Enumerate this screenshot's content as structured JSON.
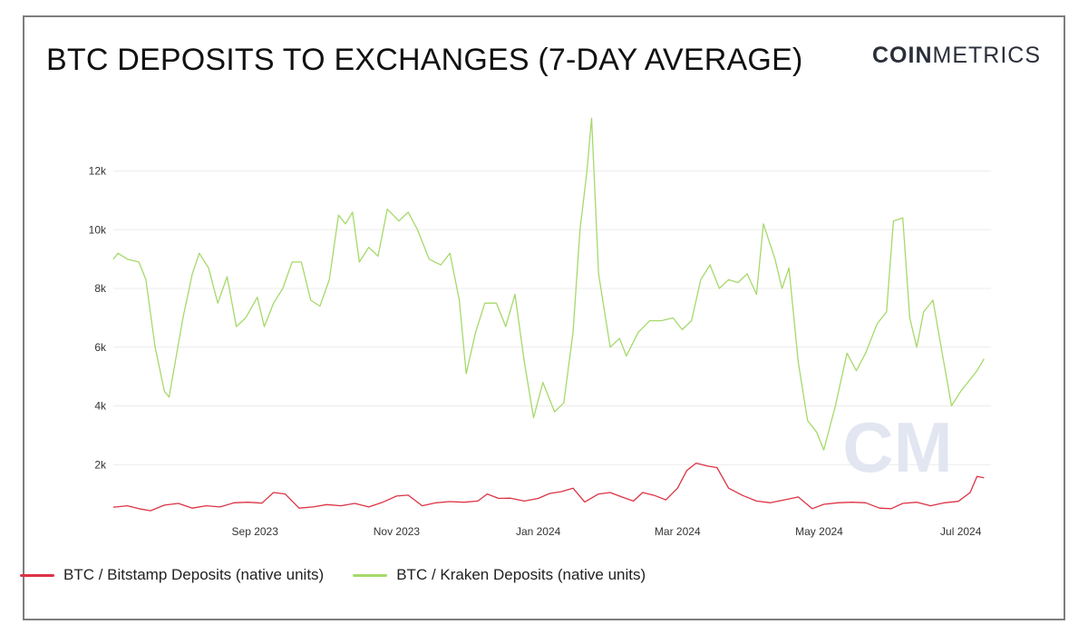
{
  "header": {
    "title": "BTC DEPOSITS TO EXCHANGES (7-DAY AVERAGE)",
    "logo_bold": "COIN",
    "logo_light": "METRICS"
  },
  "watermark": {
    "text": "CM",
    "color": "#e2e6f1"
  },
  "chart_data": {
    "type": "line",
    "title": "BTC DEPOSITS TO EXCHANGES (7-DAY AVERAGE)",
    "xlabel": "",
    "ylabel": "",
    "x_range": [
      "2023-07-02",
      "2024-07-14"
    ],
    "x_ticks": [
      {
        "date": "2023-09-01",
        "label": "Sep 2023"
      },
      {
        "date": "2023-11-01",
        "label": "Nov 2023"
      },
      {
        "date": "2024-01-01",
        "label": "Jan 2024"
      },
      {
        "date": "2024-03-01",
        "label": "Mar 2024"
      },
      {
        "date": "2024-05-01",
        "label": "May 2024"
      },
      {
        "date": "2024-07-01",
        "label": "Jul 2024"
      }
    ],
    "ylim": [
      0,
      13500
    ],
    "y_ticks": [
      {
        "value": 2000,
        "label": "2k"
      },
      {
        "value": 4000,
        "label": "4k"
      },
      {
        "value": 6000,
        "label": "6k"
      },
      {
        "value": 8000,
        "label": "8k"
      },
      {
        "value": 10000,
        "label": "10k"
      },
      {
        "value": 12000,
        "label": "12k"
      }
    ],
    "grid": true,
    "legend_position": "bottom-left",
    "series": [
      {
        "name": "BTC / Bitstamp Deposits (native units)",
        "color": "#dd3344",
        "points": [
          [
            "2023-07-02",
            550
          ],
          [
            "2023-07-08",
            600
          ],
          [
            "2023-07-13",
            500
          ],
          [
            "2023-07-18",
            430
          ],
          [
            "2023-07-24",
            620
          ],
          [
            "2023-07-30",
            680
          ],
          [
            "2023-08-05",
            520
          ],
          [
            "2023-08-11",
            600
          ],
          [
            "2023-08-17",
            560
          ],
          [
            "2023-08-23",
            700
          ],
          [
            "2023-08-29",
            720
          ],
          [
            "2023-09-04",
            690
          ],
          [
            "2023-09-09",
            1050
          ],
          [
            "2023-09-14",
            1000
          ],
          [
            "2023-09-20",
            520
          ],
          [
            "2023-09-26",
            560
          ],
          [
            "2023-10-02",
            640
          ],
          [
            "2023-10-08",
            600
          ],
          [
            "2023-10-14",
            680
          ],
          [
            "2023-10-20",
            560
          ],
          [
            "2023-10-26",
            720
          ],
          [
            "2023-11-01",
            930
          ],
          [
            "2023-11-06",
            960
          ],
          [
            "2023-11-12",
            600
          ],
          [
            "2023-11-18",
            700
          ],
          [
            "2023-11-24",
            740
          ],
          [
            "2023-11-30",
            720
          ],
          [
            "2023-12-06",
            760
          ],
          [
            "2023-12-10",
            1000
          ],
          [
            "2023-12-15",
            850
          ],
          [
            "2023-12-20",
            860
          ],
          [
            "2023-12-26",
            760
          ],
          [
            "2024-01-01",
            850
          ],
          [
            "2024-01-06",
            1020
          ],
          [
            "2024-01-11",
            1080
          ],
          [
            "2024-01-16",
            1200
          ],
          [
            "2024-01-21",
            730
          ],
          [
            "2024-01-27",
            1000
          ],
          [
            "2024-02-01",
            1050
          ],
          [
            "2024-02-06",
            900
          ],
          [
            "2024-02-11",
            760
          ],
          [
            "2024-02-15",
            1050
          ],
          [
            "2024-02-20",
            950
          ],
          [
            "2024-02-25",
            800
          ],
          [
            "2024-03-01",
            1200
          ],
          [
            "2024-03-05",
            1800
          ],
          [
            "2024-03-09",
            2050
          ],
          [
            "2024-03-14",
            1950
          ],
          [
            "2024-03-18",
            1900
          ],
          [
            "2024-03-23",
            1200
          ],
          [
            "2024-03-29",
            950
          ],
          [
            "2024-04-04",
            760
          ],
          [
            "2024-04-10",
            700
          ],
          [
            "2024-04-16",
            800
          ],
          [
            "2024-04-22",
            900
          ],
          [
            "2024-04-28",
            500
          ],
          [
            "2024-05-03",
            650
          ],
          [
            "2024-05-09",
            700
          ],
          [
            "2024-05-15",
            720
          ],
          [
            "2024-05-21",
            700
          ],
          [
            "2024-05-27",
            520
          ],
          [
            "2024-06-01",
            500
          ],
          [
            "2024-06-06",
            680
          ],
          [
            "2024-06-12",
            720
          ],
          [
            "2024-06-18",
            600
          ],
          [
            "2024-06-24",
            700
          ],
          [
            "2024-06-30",
            750
          ],
          [
            "2024-07-05",
            1050
          ],
          [
            "2024-07-08",
            1600
          ],
          [
            "2024-07-11",
            1550
          ]
        ]
      },
      {
        "name": "BTC / Kraken Deposits (native units)",
        "color": "#a6d96a",
        "points": [
          [
            "2023-07-02",
            9000
          ],
          [
            "2023-07-04",
            9200
          ],
          [
            "2023-07-08",
            9000
          ],
          [
            "2023-07-13",
            8900
          ],
          [
            "2023-07-16",
            8300
          ],
          [
            "2023-07-20",
            6000
          ],
          [
            "2023-07-24",
            4500
          ],
          [
            "2023-07-26",
            4300
          ],
          [
            "2023-08-01",
            7000
          ],
          [
            "2023-08-05",
            8500
          ],
          [
            "2023-08-08",
            9200
          ],
          [
            "2023-08-12",
            8700
          ],
          [
            "2023-08-16",
            7500
          ],
          [
            "2023-08-20",
            8400
          ],
          [
            "2023-08-24",
            6700
          ],
          [
            "2023-08-28",
            7000
          ],
          [
            "2023-09-02",
            7700
          ],
          [
            "2023-09-05",
            6700
          ],
          [
            "2023-09-09",
            7500
          ],
          [
            "2023-09-13",
            8000
          ],
          [
            "2023-09-17",
            8900
          ],
          [
            "2023-09-21",
            8900
          ],
          [
            "2023-09-25",
            7600
          ],
          [
            "2023-09-29",
            7400
          ],
          [
            "2023-10-03",
            8300
          ],
          [
            "2023-10-07",
            10500
          ],
          [
            "2023-10-10",
            10200
          ],
          [
            "2023-10-13",
            10600
          ],
          [
            "2023-10-16",
            8900
          ],
          [
            "2023-10-20",
            9400
          ],
          [
            "2023-10-24",
            9100
          ],
          [
            "2023-10-28",
            10700
          ],
          [
            "2023-11-02",
            10300
          ],
          [
            "2023-11-06",
            10600
          ],
          [
            "2023-11-10",
            10000
          ],
          [
            "2023-11-15",
            9000
          ],
          [
            "2023-11-20",
            8800
          ],
          [
            "2023-11-24",
            9200
          ],
          [
            "2023-11-28",
            7600
          ],
          [
            "2023-12-01",
            5100
          ],
          [
            "2023-12-05",
            6500
          ],
          [
            "2023-12-09",
            7500
          ],
          [
            "2023-12-14",
            7500
          ],
          [
            "2023-12-18",
            6700
          ],
          [
            "2023-12-22",
            7800
          ],
          [
            "2023-12-26",
            5500
          ],
          [
            "2023-12-30",
            3600
          ],
          [
            "2024-01-03",
            4800
          ],
          [
            "2024-01-08",
            3800
          ],
          [
            "2024-01-12",
            4100
          ],
          [
            "2024-01-16",
            6500
          ],
          [
            "2024-01-19",
            10000
          ],
          [
            "2024-01-22",
            12000
          ],
          [
            "2024-01-24",
            13800
          ],
          [
            "2024-01-27",
            8500
          ],
          [
            "2024-02-01",
            6000
          ],
          [
            "2024-02-05",
            6300
          ],
          [
            "2024-02-08",
            5700
          ],
          [
            "2024-02-13",
            6500
          ],
          [
            "2024-02-18",
            6900
          ],
          [
            "2024-02-23",
            6900
          ],
          [
            "2024-02-28",
            7000
          ],
          [
            "2024-03-03",
            6600
          ],
          [
            "2024-03-07",
            6900
          ],
          [
            "2024-03-11",
            8300
          ],
          [
            "2024-03-15",
            8800
          ],
          [
            "2024-03-19",
            8000
          ],
          [
            "2024-03-23",
            8300
          ],
          [
            "2024-03-27",
            8200
          ],
          [
            "2024-03-31",
            8500
          ],
          [
            "2024-04-04",
            7800
          ],
          [
            "2024-04-07",
            10200
          ],
          [
            "2024-04-12",
            9000
          ],
          [
            "2024-04-15",
            8000
          ],
          [
            "2024-04-18",
            8700
          ],
          [
            "2024-04-22",
            5500
          ],
          [
            "2024-04-26",
            3500
          ],
          [
            "2024-04-30",
            3100
          ],
          [
            "2024-05-03",
            2500
          ],
          [
            "2024-05-08",
            4000
          ],
          [
            "2024-05-13",
            5800
          ],
          [
            "2024-05-17",
            5200
          ],
          [
            "2024-05-21",
            5800
          ],
          [
            "2024-05-26",
            6800
          ],
          [
            "2024-05-30",
            7200
          ],
          [
            "2024-06-02",
            10300
          ],
          [
            "2024-06-06",
            10400
          ],
          [
            "2024-06-09",
            7000
          ],
          [
            "2024-06-12",
            6000
          ],
          [
            "2024-06-15",
            7200
          ],
          [
            "2024-06-19",
            7600
          ],
          [
            "2024-06-23",
            5800
          ],
          [
            "2024-06-27",
            4000
          ],
          [
            "2024-07-01",
            4500
          ],
          [
            "2024-07-05",
            4900
          ],
          [
            "2024-07-08",
            5200
          ],
          [
            "2024-07-11",
            5600
          ]
        ]
      }
    ]
  }
}
